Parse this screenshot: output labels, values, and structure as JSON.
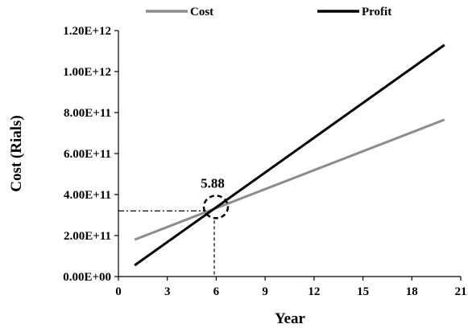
{
  "chart_data": {
    "type": "line",
    "xlabel": "Year",
    "ylabel": "Cost (Rials)",
    "xlim": [
      0,
      21
    ],
    "ylim": [
      0,
      1200000000000
    ],
    "x_ticks": [
      0,
      3,
      6,
      9,
      12,
      15,
      18,
      21
    ],
    "y_ticks": [
      0,
      200000000000,
      400000000000,
      600000000000,
      800000000000,
      1000000000000,
      1200000000000
    ],
    "x_tick_labels": [
      "0",
      "3",
      "6",
      "9",
      "12",
      "15",
      "18",
      "21"
    ],
    "y_tick_labels": [
      "0.00E+00",
      "2.00E+11",
      "4.00E+11",
      "6.00E+11",
      "8.00E+11",
      "1.00E+12",
      "1.20E+12"
    ],
    "legend_position": "top",
    "grid": false,
    "series": [
      {
        "name": "Cost",
        "color": "#8c8c8c",
        "x": [
          1,
          20
        ],
        "y": [
          180000000000,
          765000000000
        ]
      },
      {
        "name": "Profit",
        "color": "#000000",
        "x": [
          1,
          20
        ],
        "y": [
          55000000000,
          1130000000000
        ]
      }
    ],
    "annotation": {
      "label": "5.88",
      "x": 5.88,
      "y": 320000000000
    }
  }
}
